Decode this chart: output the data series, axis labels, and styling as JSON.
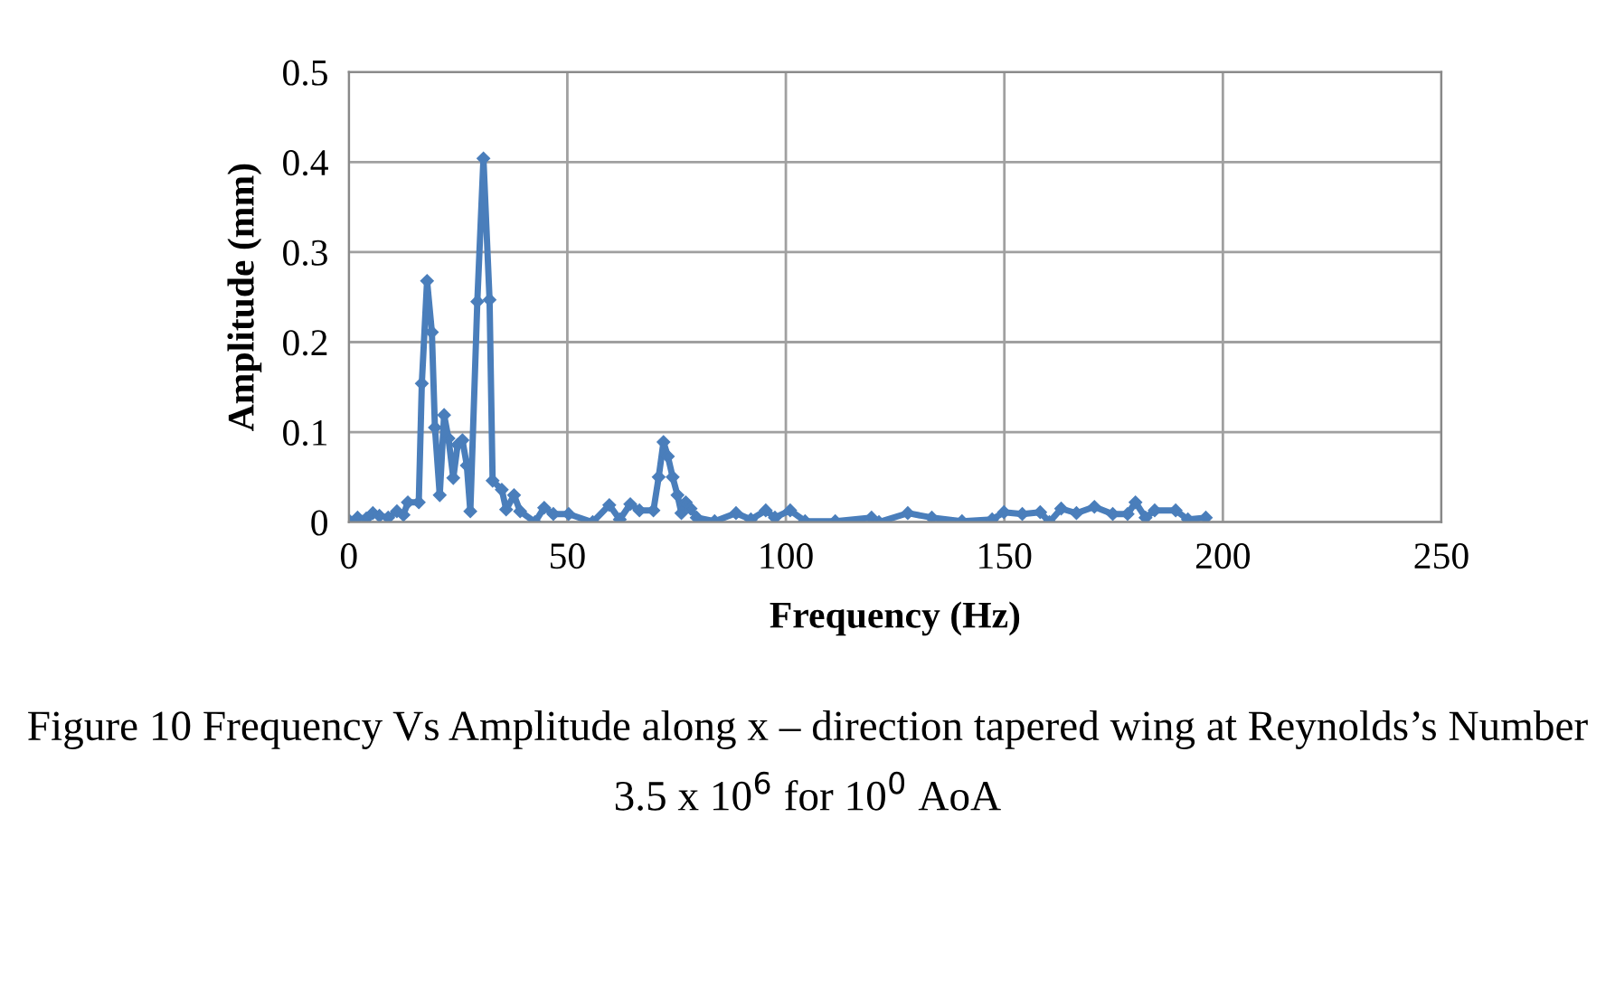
{
  "chart_data": {
    "type": "line",
    "xlabel": "Frequency (Hz)",
    "ylabel": "Amplitude (mm)",
    "xlim": [
      0,
      250
    ],
    "xticks": [
      0,
      50,
      100,
      150,
      200,
      250
    ],
    "ylim": [
      0,
      0.5
    ],
    "yticks": [
      0,
      0.1,
      0.2,
      0.3,
      0.4,
      0.5
    ],
    "grid": true,
    "marker": "diamond",
    "line_style": "solid",
    "annotations": [
      "Figure 10 Frequency Vs Amplitude along x – direction tapered wing at Reynolds’s Number 3.5 x 10$^{6}$ for 10$^{0}$ AoA"
    ],
    "series": [
      {
        "color": "#4a7ebb",
        "x": [
          0,
          2,
          4,
          5.5,
          7,
          9,
          11,
          12.5,
          13.5,
          16,
          16.7,
          17.9,
          19,
          19.7,
          20.8,
          21.8,
          22.8,
          23.9,
          24.9,
          26,
          27,
          27.8,
          29.4,
          30.8,
          32.2,
          32.9,
          35,
          36,
          37.8,
          39.2,
          42.6,
          44.7,
          46.8,
          50.3,
          55.8,
          59.6,
          62,
          64.4,
          66.5,
          69.7,
          70.9,
          72,
          73,
          74.1,
          75.2,
          76.1,
          77.1,
          78.2,
          79.6,
          83.7,
          88.6,
          92,
          95.4,
          97.5,
          101,
          104.4,
          111.3,
          119.6,
          121.3,
          127.9,
          133.4,
          140.3,
          147.2,
          149.9,
          154.1,
          158.2,
          160.3,
          163,
          166.5,
          170.6,
          174.8,
          178.2,
          180,
          182.3,
          184.4,
          189.2,
          192,
          196.1
        ],
        "values": [
          0.002,
          0.005,
          0.004,
          0.01,
          0.007,
          0.005,
          0.012,
          0.008,
          0.022,
          0.022,
          0.154,
          0.268,
          0.211,
          0.105,
          0.03,
          0.119,
          0.093,
          0.049,
          0.086,
          0.091,
          0.063,
          0.012,
          0.245,
          0.404,
          0.247,
          0.046,
          0.036,
          0.014,
          0.03,
          0.012,
          0,
          0.016,
          0.009,
          0.009,
          0,
          0.019,
          0.003,
          0.02,
          0.013,
          0.013,
          0.05,
          0.089,
          0.073,
          0.05,
          0.03,
          0.01,
          0.022,
          0.015,
          0.005,
          0.001,
          0.01,
          0.003,
          0.013,
          0.005,
          0.013,
          0.001,
          0.001,
          0.005,
          0,
          0.01,
          0.005,
          0.001,
          0.003,
          0.011,
          0.009,
          0.011,
          0,
          0.015,
          0.01,
          0.017,
          0.009,
          0.009,
          0.022,
          0.005,
          0.013,
          0.013,
          0.003,
          0.005
        ]
      }
    ]
  }
}
